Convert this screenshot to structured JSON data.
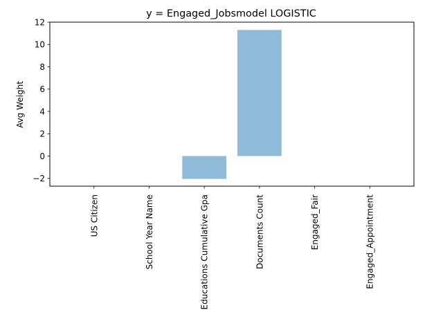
{
  "chart_data": {
    "type": "bar",
    "title": "y = Engaged_Jobsmodel LOGISTIC",
    "xlabel": "",
    "ylabel": "Avg Weight",
    "categories": [
      "US Citizen",
      "School Year Name",
      "Educations Cumulative Gpa",
      "Documents Count",
      "Engaged_Fair",
      "Engaged_Appointment"
    ],
    "values": [
      0,
      0,
      -2.05,
      11.3,
      0,
      0
    ],
    "ylim": [
      -2.7,
      12
    ],
    "yticks": [
      -2,
      0,
      2,
      4,
      6,
      8,
      10,
      12
    ],
    "ytick_labels": [
      "−2",
      "0",
      "2",
      "4",
      "6",
      "8",
      "10",
      "12"
    ],
    "bar_color": "#8fbbd9",
    "grid": false,
    "legend": "none"
  }
}
